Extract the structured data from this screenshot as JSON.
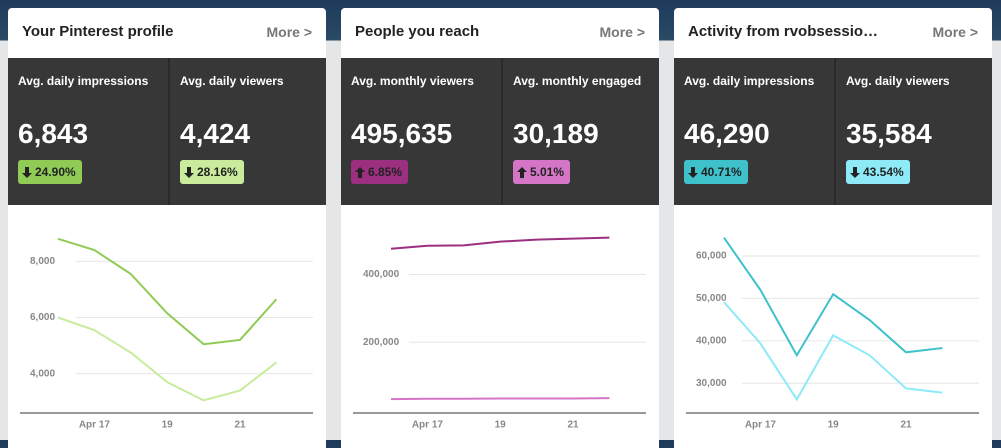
{
  "cards": [
    {
      "title": "Your Pinterest profile",
      "more": "More >",
      "metrics": [
        {
          "label": "Avg. daily impressions",
          "value": "6,843",
          "change": "24.90%",
          "trend": "down",
          "color": "#8fcb55"
        },
        {
          "label": "Avg. daily viewers",
          "value": "4,424",
          "change": "28.16%",
          "trend": "down",
          "color": "#c8eb9c"
        }
      ]
    },
    {
      "title": "People you reach",
      "more": "More >",
      "metrics": [
        {
          "label": "Avg. monthly viewers",
          "value": "495,635",
          "change": "6.85%",
          "trend": "up",
          "color": "#9c2f80"
        },
        {
          "label": "Avg. monthly engaged",
          "value": "30,189",
          "change": "5.01%",
          "trend": "up",
          "color": "#d575c5"
        }
      ]
    },
    {
      "title": "Activity from rvobsessio…",
      "more": "More >",
      "metrics": [
        {
          "label": "Avg. daily impressions",
          "value": "46,290",
          "change": "40.71%",
          "trend": "down",
          "color": "#3fc1cc"
        },
        {
          "label": "Avg. daily viewers",
          "value": "35,584",
          "change": "43.54%",
          "trend": "down",
          "color": "#8eeaf6"
        }
      ]
    }
  ],
  "chart_data": [
    {
      "type": "line",
      "categories": [
        null,
        "Apr 17",
        null,
        "19",
        null,
        "21",
        null
      ],
      "series": [
        {
          "name": "Avg. daily impressions",
          "color": "#8fcb55",
          "values": [
            8800,
            8400,
            7550,
            6150,
            5050,
            5200,
            6650
          ]
        },
        {
          "name": "Avg. daily viewers",
          "color": "#c8eb9c",
          "values": [
            6000,
            5550,
            4750,
            3700,
            3050,
            3400,
            4400
          ]
        }
      ],
      "ylim": [
        2600,
        9400
      ],
      "yticks": [
        {
          "value": 4000,
          "label": "4,000"
        },
        {
          "value": 6000,
          "label": "6,000"
        },
        {
          "value": 8000,
          "label": "8,000"
        }
      ],
      "grid": true
    },
    {
      "type": "line",
      "categories": [
        null,
        "Apr 17",
        null,
        "19",
        null,
        "21",
        null
      ],
      "series": [
        {
          "name": "Avg. monthly viewers",
          "color": "#9c2f80",
          "values": [
            476000,
            485000,
            486000,
            497000,
            503000,
            506000,
            509000
          ]
        },
        {
          "name": "Avg. monthly engaged",
          "color": "#d575c5",
          "values": [
            32000,
            33000,
            33000,
            34000,
            34000,
            34000,
            35000
          ]
        }
      ],
      "ylim": [
        -9000,
        555000
      ],
      "yticks": [
        {
          "value": 200000,
          "label": "200,000"
        },
        {
          "value": 400000,
          "label": "400,000"
        }
      ],
      "grid": true
    },
    {
      "type": "line",
      "categories": [
        null,
        "Apr 17",
        null,
        "19",
        null,
        "21",
        null
      ],
      "series": [
        {
          "name": "Avg. daily impressions",
          "color": "#3fc1cc",
          "values": [
            64300,
            52000,
            36600,
            51000,
            44900,
            37300,
            38300
          ]
        },
        {
          "name": "Avg. daily viewers",
          "color": "#8eeaf6",
          "values": [
            49100,
            39400,
            26200,
            41300,
            36600,
            28800,
            27800
          ]
        }
      ],
      "ylim": [
        23000,
        68000
      ],
      "yticks": [
        {
          "value": 30000,
          "label": "30,000"
        },
        {
          "value": 40000,
          "label": "40,000"
        },
        {
          "value": 50000,
          "label": "50,000"
        },
        {
          "value": 60000,
          "label": "60,000"
        }
      ],
      "grid": true
    }
  ]
}
